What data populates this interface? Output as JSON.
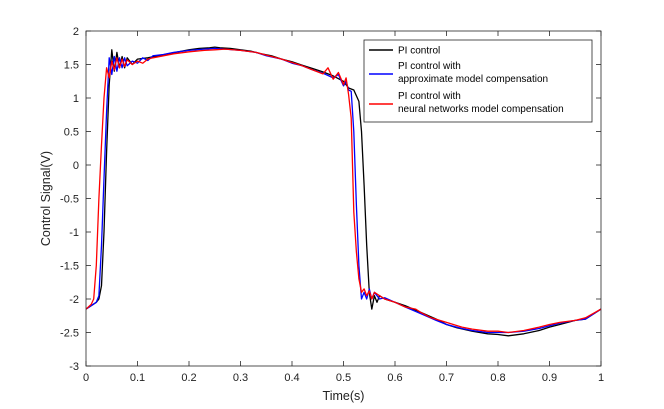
{
  "chart_data": {
    "type": "line",
    "title": "",
    "xlabel": "Time(s)",
    "ylabel": "Control Signal(V)",
    "xlim": [
      0,
      1
    ],
    "ylim": [
      -3,
      2
    ],
    "x_ticks": [
      "0",
      "0.1",
      "0.2",
      "0.3",
      "0.4",
      "0.5",
      "0.6",
      "0.7",
      "0.8",
      "0.9",
      "1"
    ],
    "y_ticks": [
      "-3",
      "-2.5",
      "-2",
      "-1.5",
      "-1",
      "-0.5",
      "0",
      "0.5",
      "1",
      "1.5",
      "2"
    ],
    "grid": false,
    "legend_position": "top-right",
    "legend": {
      "black": "PI control",
      "blue_line1": "PI control with",
      "blue_line2": "approximate model compensation",
      "red_line1": "PI control with",
      "red_line2": "neural networks model compensation"
    },
    "series": [
      {
        "name": "PI control",
        "color": "#000000",
        "points": [
          [
            0,
            -2.15
          ],
          [
            0.01,
            -2.1
          ],
          [
            0.02,
            -2.05
          ],
          [
            0.025,
            -2.0
          ],
          [
            0.03,
            -1.8
          ],
          [
            0.035,
            -1.0
          ],
          [
            0.04,
            0.2
          ],
          [
            0.045,
            1.2
          ],
          [
            0.05,
            1.72
          ],
          [
            0.055,
            1.4
          ],
          [
            0.06,
            1.68
          ],
          [
            0.065,
            1.45
          ],
          [
            0.07,
            1.62
          ],
          [
            0.075,
            1.45
          ],
          [
            0.08,
            1.6
          ],
          [
            0.09,
            1.5
          ],
          [
            0.1,
            1.58
          ],
          [
            0.12,
            1.6
          ],
          [
            0.14,
            1.63
          ],
          [
            0.16,
            1.66
          ],
          [
            0.18,
            1.69
          ],
          [
            0.2,
            1.72
          ],
          [
            0.22,
            1.74
          ],
          [
            0.24,
            1.75
          ],
          [
            0.25,
            1.76
          ],
          [
            0.26,
            1.75
          ],
          [
            0.28,
            1.74
          ],
          [
            0.3,
            1.72
          ],
          [
            0.32,
            1.7
          ],
          [
            0.34,
            1.66
          ],
          [
            0.36,
            1.63
          ],
          [
            0.38,
            1.58
          ],
          [
            0.4,
            1.54
          ],
          [
            0.42,
            1.49
          ],
          [
            0.44,
            1.44
          ],
          [
            0.46,
            1.39
          ],
          [
            0.48,
            1.33
          ],
          [
            0.5,
            1.25
          ],
          [
            0.51,
            1.15
          ],
          [
            0.52,
            1.12
          ],
          [
            0.53,
            0.95
          ],
          [
            0.535,
            0.5
          ],
          [
            0.54,
            -0.3
          ],
          [
            0.545,
            -1.2
          ],
          [
            0.55,
            -1.9
          ],
          [
            0.555,
            -2.15
          ],
          [
            0.56,
            -1.95
          ],
          [
            0.565,
            -2.05
          ],
          [
            0.57,
            -1.95
          ],
          [
            0.58,
            -2.0
          ],
          [
            0.6,
            -2.05
          ],
          [
            0.62,
            -2.1
          ],
          [
            0.65,
            -2.2
          ],
          [
            0.68,
            -2.3
          ],
          [
            0.7,
            -2.38
          ],
          [
            0.72,
            -2.43
          ],
          [
            0.75,
            -2.48
          ],
          [
            0.78,
            -2.52
          ],
          [
            0.8,
            -2.53
          ],
          [
            0.82,
            -2.55
          ],
          [
            0.85,
            -2.52
          ],
          [
            0.88,
            -2.47
          ],
          [
            0.9,
            -2.42
          ],
          [
            0.92,
            -2.38
          ],
          [
            0.95,
            -2.32
          ],
          [
            0.97,
            -2.3
          ],
          [
            1.0,
            -2.15
          ]
        ]
      },
      {
        "name": "PI control with approximate model compensation",
        "color": "#0000ff",
        "points": [
          [
            0,
            -2.15
          ],
          [
            0.01,
            -2.1
          ],
          [
            0.02,
            -2.05
          ],
          [
            0.025,
            -1.95
          ],
          [
            0.03,
            -1.2
          ],
          [
            0.035,
            -0.2
          ],
          [
            0.04,
            0.8
          ],
          [
            0.045,
            1.6
          ],
          [
            0.05,
            1.35
          ],
          [
            0.055,
            1.62
          ],
          [
            0.06,
            1.4
          ],
          [
            0.065,
            1.6
          ],
          [
            0.07,
            1.45
          ],
          [
            0.075,
            1.6
          ],
          [
            0.08,
            1.48
          ],
          [
            0.09,
            1.55
          ],
          [
            0.1,
            1.52
          ],
          [
            0.11,
            1.6
          ],
          [
            0.12,
            1.56
          ],
          [
            0.13,
            1.63
          ],
          [
            0.15,
            1.65
          ],
          [
            0.17,
            1.68
          ],
          [
            0.2,
            1.71
          ],
          [
            0.23,
            1.73
          ],
          [
            0.25,
            1.74
          ],
          [
            0.27,
            1.73
          ],
          [
            0.3,
            1.71
          ],
          [
            0.33,
            1.68
          ],
          [
            0.35,
            1.63
          ],
          [
            0.38,
            1.58
          ],
          [
            0.4,
            1.52
          ],
          [
            0.42,
            1.48
          ],
          [
            0.44,
            1.42
          ],
          [
            0.46,
            1.37
          ],
          [
            0.48,
            1.3
          ],
          [
            0.49,
            1.35
          ],
          [
            0.5,
            1.18
          ],
          [
            0.505,
            1.25
          ],
          [
            0.51,
            1.12
          ],
          [
            0.515,
            1.1
          ],
          [
            0.52,
            0.5
          ],
          [
            0.525,
            -0.6
          ],
          [
            0.53,
            -1.5
          ],
          [
            0.535,
            -2.0
          ],
          [
            0.54,
            -1.9
          ],
          [
            0.545,
            -2.0
          ],
          [
            0.55,
            -1.85
          ],
          [
            0.555,
            -2.0
          ],
          [
            0.56,
            -1.9
          ],
          [
            0.57,
            -2.0
          ],
          [
            0.58,
            -1.98
          ],
          [
            0.6,
            -2.05
          ],
          [
            0.62,
            -2.12
          ],
          [
            0.65,
            -2.22
          ],
          [
            0.68,
            -2.32
          ],
          [
            0.7,
            -2.38
          ],
          [
            0.73,
            -2.44
          ],
          [
            0.75,
            -2.47
          ],
          [
            0.78,
            -2.5
          ],
          [
            0.8,
            -2.5
          ],
          [
            0.82,
            -2.5
          ],
          [
            0.85,
            -2.48
          ],
          [
            0.88,
            -2.44
          ],
          [
            0.9,
            -2.4
          ],
          [
            0.92,
            -2.36
          ],
          [
            0.95,
            -2.32
          ],
          [
            0.97,
            -2.3
          ],
          [
            1.0,
            -2.15
          ]
        ]
      },
      {
        "name": "PI control with neural networks model compensation",
        "color": "#ff0000",
        "points": [
          [
            0,
            -2.15
          ],
          [
            0.01,
            -2.08
          ],
          [
            0.015,
            -2.0
          ],
          [
            0.02,
            -1.5
          ],
          [
            0.025,
            -0.5
          ],
          [
            0.03,
            0.3
          ],
          [
            0.035,
            1.0
          ],
          [
            0.04,
            1.45
          ],
          [
            0.045,
            1.3
          ],
          [
            0.05,
            1.55
          ],
          [
            0.055,
            1.42
          ],
          [
            0.06,
            1.6
          ],
          [
            0.065,
            1.45
          ],
          [
            0.07,
            1.58
          ],
          [
            0.075,
            1.47
          ],
          [
            0.08,
            1.57
          ],
          [
            0.09,
            1.5
          ],
          [
            0.1,
            1.55
          ],
          [
            0.11,
            1.52
          ],
          [
            0.12,
            1.58
          ],
          [
            0.13,
            1.6
          ],
          [
            0.15,
            1.63
          ],
          [
            0.17,
            1.66
          ],
          [
            0.2,
            1.69
          ],
          [
            0.23,
            1.71
          ],
          [
            0.25,
            1.72
          ],
          [
            0.27,
            1.73
          ],
          [
            0.3,
            1.71
          ],
          [
            0.33,
            1.68
          ],
          [
            0.35,
            1.64
          ],
          [
            0.38,
            1.58
          ],
          [
            0.4,
            1.53
          ],
          [
            0.42,
            1.48
          ],
          [
            0.44,
            1.42
          ],
          [
            0.46,
            1.36
          ],
          [
            0.47,
            1.45
          ],
          [
            0.48,
            1.28
          ],
          [
            0.49,
            1.38
          ],
          [
            0.5,
            1.2
          ],
          [
            0.505,
            1.3
          ],
          [
            0.51,
            1.05
          ],
          [
            0.515,
            0.7
          ],
          [
            0.52,
            -0.7
          ],
          [
            0.525,
            -1.3
          ],
          [
            0.53,
            -1.7
          ],
          [
            0.535,
            -1.9
          ],
          [
            0.54,
            -1.85
          ],
          [
            0.545,
            -1.95
          ],
          [
            0.55,
            -1.88
          ],
          [
            0.555,
            -2.0
          ],
          [
            0.56,
            -1.9
          ],
          [
            0.57,
            -1.95
          ],
          [
            0.58,
            -2.0
          ],
          [
            0.6,
            -2.05
          ],
          [
            0.62,
            -2.12
          ],
          [
            0.64,
            -2.15
          ],
          [
            0.65,
            -2.2
          ],
          [
            0.67,
            -2.28
          ],
          [
            0.7,
            -2.35
          ],
          [
            0.73,
            -2.42
          ],
          [
            0.75,
            -2.45
          ],
          [
            0.78,
            -2.48
          ],
          [
            0.8,
            -2.48
          ],
          [
            0.82,
            -2.5
          ],
          [
            0.85,
            -2.47
          ],
          [
            0.88,
            -2.42
          ],
          [
            0.9,
            -2.38
          ],
          [
            0.92,
            -2.35
          ],
          [
            0.95,
            -2.32
          ],
          [
            0.97,
            -2.28
          ],
          [
            1.0,
            -2.15
          ]
        ]
      }
    ]
  }
}
